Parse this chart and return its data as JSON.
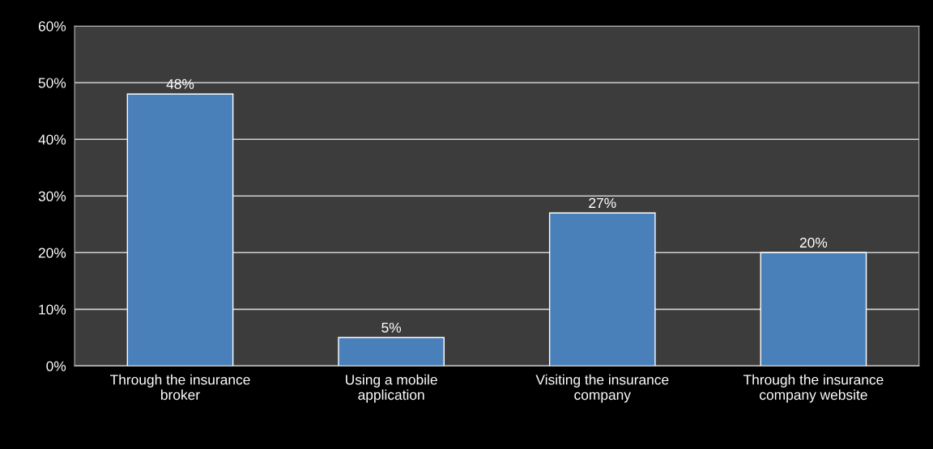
{
  "chart_data": {
    "type": "bar",
    "categories": [
      "Through the insurance\nbroker",
      "Using a mobile\napplication",
      "Visiting the insurance\ncompany",
      "Through the insurance\ncompany website"
    ],
    "values": [
      48,
      5,
      27,
      20
    ],
    "value_labels": [
      "48%",
      "5%",
      "27%",
      "20%"
    ],
    "color": "#4a80ba",
    "ylim": [
      0,
      60
    ],
    "yticks": [
      {
        "value": 0,
        "label": "0%"
      },
      {
        "value": 10,
        "label": "10%"
      },
      {
        "value": 20,
        "label": "20%"
      },
      {
        "value": 30,
        "label": "30%"
      },
      {
        "value": 40,
        "label": "40%"
      },
      {
        "value": 50,
        "label": "50%"
      },
      {
        "value": 60,
        "label": "60%"
      }
    ],
    "grid": "y"
  }
}
